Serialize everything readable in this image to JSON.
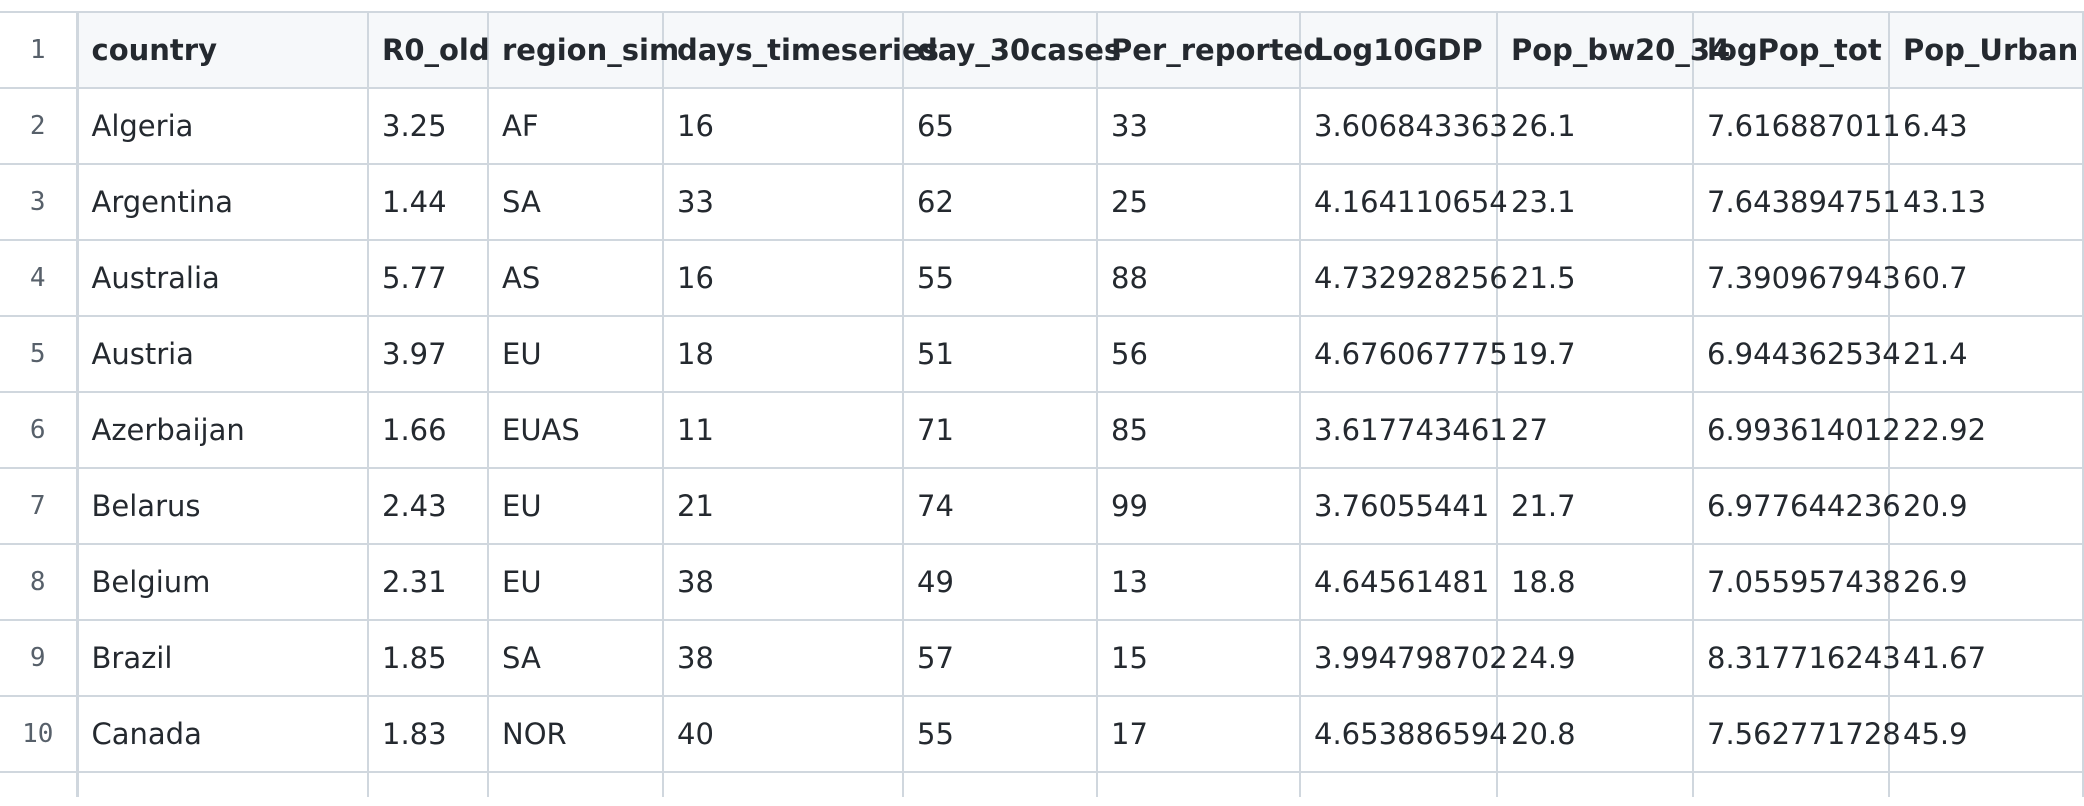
{
  "columns": [
    "country",
    "R0_old",
    "region_sim",
    "days_timeseries",
    "day_30cases",
    "Per_reported",
    "Log10GDP",
    "Pop_bw20_34",
    "logPop_tot",
    "Pop_Urban"
  ],
  "header_line_number": "1",
  "rows": [
    {
      "line": "2",
      "cells": [
        "Algeria",
        "3.25",
        "AF",
        "16",
        "65",
        "33",
        "3.606843363",
        "26.1",
        "7.616887011",
        "6.43"
      ]
    },
    {
      "line": "3",
      "cells": [
        "Argentina",
        "1.44",
        "SA",
        "33",
        "62",
        "25",
        "4.164110654",
        "23.1",
        "7.643894751",
        "43.13"
      ]
    },
    {
      "line": "4",
      "cells": [
        "Australia",
        "5.77",
        "AS",
        "16",
        "55",
        "88",
        "4.732928256",
        "21.5",
        "7.390967943",
        "60.7"
      ]
    },
    {
      "line": "5",
      "cells": [
        "Austria",
        "3.97",
        "EU",
        "18",
        "51",
        "56",
        "4.676067775",
        "19.7",
        "6.944362534",
        "21.4"
      ]
    },
    {
      "line": "6",
      "cells": [
        "Azerbaijan",
        "1.66",
        "EUAS",
        "11",
        "71",
        "85",
        "3.617743461",
        "27",
        "6.993614012",
        "22.92"
      ]
    },
    {
      "line": "7",
      "cells": [
        "Belarus",
        "2.43",
        "EU",
        "21",
        "74",
        "99",
        "3.76055441",
        "21.7",
        "6.977644236",
        "20.9"
      ]
    },
    {
      "line": "8",
      "cells": [
        "Belgium",
        "2.31",
        "EU",
        "38",
        "49",
        "13",
        "4.64561481",
        "18.8",
        "7.055957438",
        "26.9"
      ]
    },
    {
      "line": "9",
      "cells": [
        "Brazil",
        "1.85",
        "SA",
        "38",
        "57",
        "15",
        "3.994798702",
        "24.9",
        "8.317716243",
        "41.67"
      ]
    },
    {
      "line": "10",
      "cells": [
        "Canada",
        "1.83",
        "NOR",
        "40",
        "55",
        "17",
        "4.653886594",
        "20.8",
        "7.562771728",
        "45.9"
      ]
    }
  ]
}
